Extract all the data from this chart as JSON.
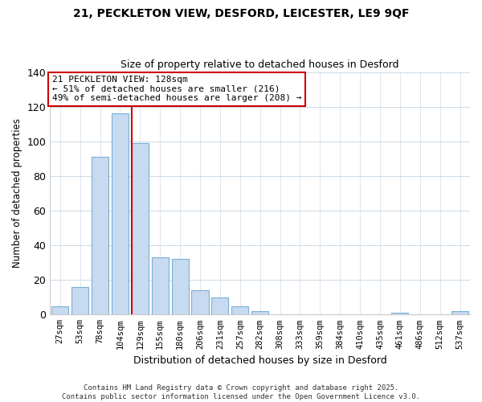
{
  "title_line1": "21, PECKLETON VIEW, DESFORD, LEICESTER, LE9 9QF",
  "title_line2": "Size of property relative to detached houses in Desford",
  "xlabel": "Distribution of detached houses by size in Desford",
  "ylabel": "Number of detached properties",
  "bar_labels": [
    "27sqm",
    "53sqm",
    "78sqm",
    "104sqm",
    "129sqm",
    "155sqm",
    "180sqm",
    "206sqm",
    "231sqm",
    "257sqm",
    "282sqm",
    "308sqm",
    "333sqm",
    "359sqm",
    "384sqm",
    "410sqm",
    "435sqm",
    "461sqm",
    "486sqm",
    "512sqm",
    "537sqm"
  ],
  "bar_values": [
    5,
    16,
    91,
    116,
    99,
    33,
    32,
    14,
    10,
    5,
    2,
    0,
    0,
    0,
    0,
    0,
    0,
    1,
    0,
    0,
    2
  ],
  "bar_color": "#c8daf0",
  "bar_edge_color": "#7aafd4",
  "vline_index": 4,
  "vline_color": "#cc0000",
  "ylim": [
    0,
    140
  ],
  "yticks": [
    0,
    20,
    40,
    60,
    80,
    100,
    120,
    140
  ],
  "annotation_title": "21 PECKLETON VIEW: 128sqm",
  "annotation_line1": "← 51% of detached houses are smaller (216)",
  "annotation_line2": "49% of semi-detached houses are larger (208) →",
  "annotation_box_color": "#ffffff",
  "annotation_box_edge": "#cc0000",
  "footer_line1": "Contains HM Land Registry data © Crown copyright and database right 2025.",
  "footer_line2": "Contains public sector information licensed under the Open Government Licence v3.0.",
  "background_color": "#ffffff",
  "grid_color": "#d0dce8"
}
